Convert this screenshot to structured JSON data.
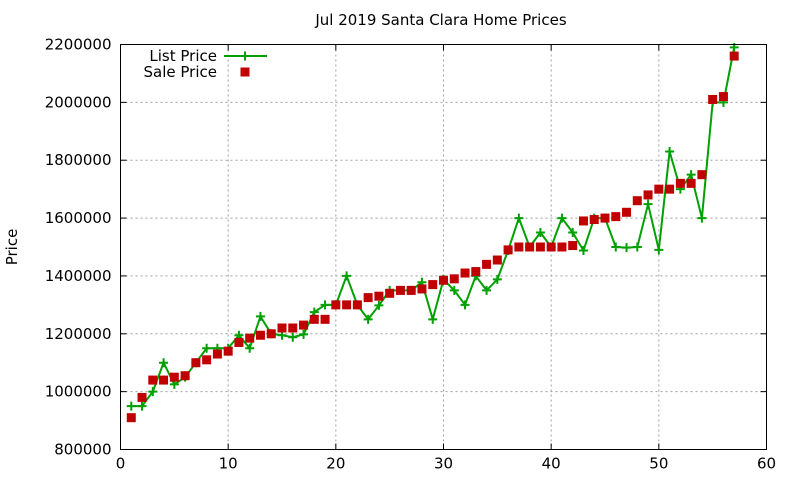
{
  "chart_data": {
    "type": "line",
    "title": "Jul 2019 Santa Clara Home Prices",
    "xlabel": "",
    "ylabel": "Price",
    "xlim": [
      0,
      60
    ],
    "ylim": [
      800000,
      2200000
    ],
    "x_ticks": [
      0,
      10,
      20,
      30,
      40,
      50,
      60
    ],
    "y_ticks": [
      800000,
      1000000,
      1200000,
      1400000,
      1600000,
      1800000,
      2000000,
      2200000
    ],
    "grid": true,
    "legend_position": "top-left",
    "series": [
      {
        "name": "List Price",
        "style": "line+cross",
        "color": "#00a000",
        "x": [
          1,
          2,
          3,
          4,
          5,
          6,
          7,
          8,
          9,
          10,
          11,
          12,
          13,
          14,
          15,
          16,
          17,
          18,
          19,
          20,
          21,
          22,
          23,
          24,
          25,
          26,
          27,
          28,
          29,
          30,
          31,
          32,
          33,
          34,
          35,
          36,
          37,
          38,
          39,
          40,
          41,
          42,
          43,
          44,
          45,
          46,
          47,
          48,
          49,
          50,
          51,
          52,
          53,
          54,
          55,
          56,
          57
        ],
        "values": [
          950000,
          950000,
          1000000,
          1100000,
          1025000,
          1050000,
          1100000,
          1150000,
          1150000,
          1150000,
          1195000,
          1150000,
          1260000,
          1200000,
          1195000,
          1188000,
          1198000,
          1275000,
          1300000,
          1300000,
          1400000,
          1300000,
          1250000,
          1298000,
          1350000,
          1350000,
          1350000,
          1378000,
          1250000,
          1388000,
          1350000,
          1300000,
          1400000,
          1350000,
          1388000,
          1488000,
          1600000,
          1500000,
          1550000,
          1500000,
          1600000,
          1550000,
          1488000,
          1600000,
          1600000,
          1500000,
          1498000,
          1500000,
          1648000,
          1490000,
          1830000,
          1700000,
          1750000,
          1600000,
          2000000,
          2000000,
          2190000
        ]
      },
      {
        "name": "Sale Price",
        "style": "square-points",
        "color": "#c00000",
        "x": [
          1,
          2,
          3,
          4,
          5,
          6,
          7,
          8,
          9,
          10,
          11,
          12,
          13,
          14,
          15,
          16,
          17,
          18,
          19,
          20,
          21,
          22,
          23,
          24,
          25,
          26,
          27,
          28,
          29,
          30,
          31,
          32,
          33,
          34,
          35,
          36,
          37,
          38,
          39,
          40,
          41,
          42,
          43,
          44,
          45,
          46,
          47,
          48,
          49,
          50,
          51,
          52,
          53,
          54,
          55,
          56,
          57
        ],
        "values": [
          910000,
          980000,
          1040000,
          1040000,
          1050000,
          1055000,
          1100000,
          1110000,
          1130000,
          1140000,
          1170000,
          1185000,
          1195000,
          1200000,
          1220000,
          1220000,
          1230000,
          1250000,
          1250000,
          1300000,
          1300000,
          1300000,
          1325000,
          1330000,
          1340000,
          1350000,
          1350000,
          1355000,
          1370000,
          1385000,
          1390000,
          1410000,
          1415000,
          1440000,
          1455000,
          1490000,
          1500000,
          1500000,
          1500000,
          1500000,
          1500000,
          1505000,
          1590000,
          1595000,
          1600000,
          1605000,
          1620000,
          1660000,
          1680000,
          1700000,
          1700000,
          1720000,
          1720000,
          1750000,
          2010000,
          2020000,
          2160000
        ]
      }
    ]
  }
}
